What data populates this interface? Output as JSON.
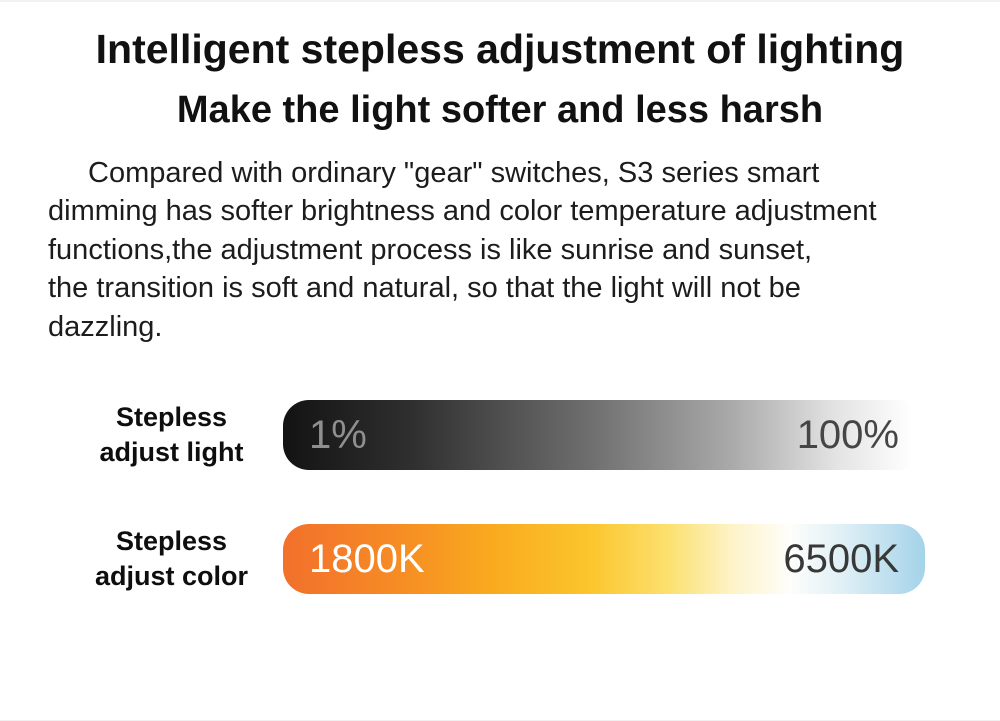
{
  "page": {
    "background": "#ffffff",
    "text_color": "#111111"
  },
  "header": {
    "title": "Intelligent stepless adjustment of lighting",
    "subtitle": "Make the light softer and less harsh"
  },
  "description": {
    "full_text": "Compared with ordinary \"gear\" switches, S3 series smart dimming has softer brightness and color temperature adjustment functions,the adjustment process is like sunrise and sunset, the transition is soft and natural, so that the light will not be dazzling.",
    "lines": [
      "Compared with ordinary \"gear\" switches, S3 series smart",
      "dimming has softer brightness and color temperature adjustment",
      "functions,the adjustment process is like sunrise and sunset,",
      "the transition is soft and natural, so that the light will not be",
      "dazzling."
    ]
  },
  "bars": {
    "light": {
      "label_line1": "Stepless",
      "label_line2": "adjust light",
      "min_value": "1%",
      "max_value": "100%",
      "min_value_color": "#8f8f8f",
      "max_value_color": "#454545",
      "gradient": [
        "#131313 0%",
        "#2f2f2f 20%",
        "#6f6f6f 48%",
        "#aaaaaa 70%",
        "#e3e3e3 86%",
        "#ffffff 98%"
      ]
    },
    "color": {
      "label_line1": "Stepless",
      "label_line2": "adjust color",
      "min_value": "1800K",
      "max_value": "6500K",
      "min_value_color": "#ffffff",
      "max_value_color": "#383838",
      "gradient": [
        "#f2702c 0%",
        "#f68c24 18%",
        "#f9ab1f 33%",
        "#fbc62e 48%",
        "#fce06f 60%",
        "#fdf3c8 70%",
        "#fefefb 79%",
        "#dceef5 88%",
        "#a4d3e9 100%"
      ]
    }
  }
}
